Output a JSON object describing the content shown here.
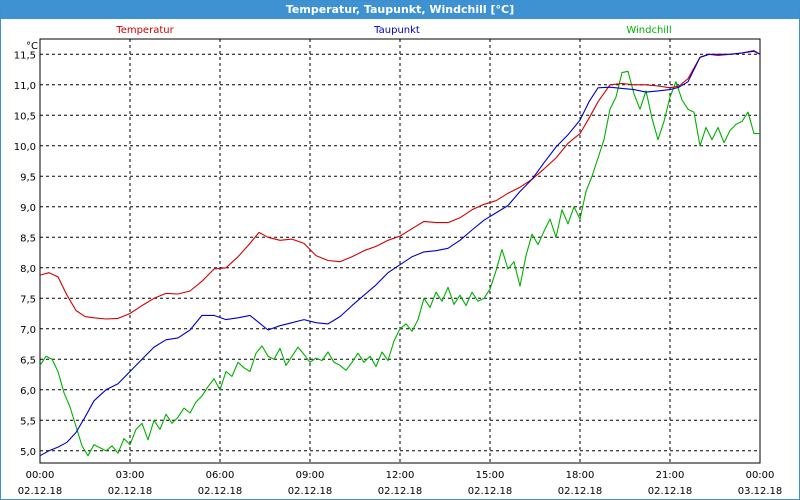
{
  "window": {
    "title": "Temperatur, Taupunkt, Windchill [°C]"
  },
  "colors": {
    "titlebar": "#3f92d2",
    "grid": "#000000"
  },
  "chart_data": {
    "type": "line",
    "title": "Temperatur, Taupunkt, Windchill [°C]",
    "ylabel": "°C",
    "ylim": [
      4.8,
      11.75
    ],
    "xlim": [
      0,
      24
    ],
    "grid": true,
    "legend_position": "top",
    "y_ticks": [
      {
        "value": 5.0,
        "label": "5,0"
      },
      {
        "value": 5.5,
        "label": "5,5"
      },
      {
        "value": 6.0,
        "label": "6,0"
      },
      {
        "value": 6.5,
        "label": "6,5"
      },
      {
        "value": 7.0,
        "label": "7,0"
      },
      {
        "value": 7.5,
        "label": "7,5"
      },
      {
        "value": 8.0,
        "label": "8,0"
      },
      {
        "value": 8.5,
        "label": "8,5"
      },
      {
        "value": 9.0,
        "label": "9,0"
      },
      {
        "value": 9.5,
        "label": "9,5"
      },
      {
        "value": 10.0,
        "label": "10,0"
      },
      {
        "value": 10.5,
        "label": "10,5"
      },
      {
        "value": 11.0,
        "label": "11,0"
      },
      {
        "value": 11.5,
        "label": "11,5"
      }
    ],
    "x_ticks": [
      {
        "value": 0,
        "time": "00:00",
        "date": "02.12.18"
      },
      {
        "value": 3,
        "time": "03:00",
        "date": "02.12.18"
      },
      {
        "value": 6,
        "time": "06:00",
        "date": "02.12.18"
      },
      {
        "value": 9,
        "time": "09:00",
        "date": "02.12.18"
      },
      {
        "value": 12,
        "time": "12:00",
        "date": "02.12.18"
      },
      {
        "value": 15,
        "time": "15:00",
        "date": "02.12.18"
      },
      {
        "value": 18,
        "time": "18:00",
        "date": "02.12.18"
      },
      {
        "value": 21,
        "time": "21:00",
        "date": "02.12.18"
      },
      {
        "value": 24,
        "time": "00:00",
        "date": "03.12.18"
      }
    ],
    "series": [
      {
        "name": "Temperatur",
        "color": "#d00000",
        "x": [
          0,
          0.3,
          0.6,
          0.9,
          1.2,
          1.5,
          1.8,
          2.2,
          2.6,
          3.0,
          3.4,
          3.8,
          4.2,
          4.6,
          5.0,
          5.4,
          5.8,
          6.2,
          6.6,
          7.0,
          7.3,
          7.6,
          8.0,
          8.4,
          8.8,
          9.2,
          9.6,
          10.0,
          10.4,
          10.8,
          11.2,
          11.6,
          12.0,
          12.4,
          12.8,
          13.2,
          13.6,
          14.0,
          14.4,
          14.8,
          15.2,
          15.6,
          16.0,
          16.4,
          16.8,
          17.2,
          17.6,
          18.0,
          18.3,
          18.6,
          19.0,
          19.4,
          19.8,
          20.2,
          20.6,
          21.0,
          21.3,
          21.6,
          22.0,
          22.3,
          22.6,
          23.0,
          23.4,
          23.8,
          24.0
        ],
        "y": [
          7.88,
          7.92,
          7.85,
          7.55,
          7.3,
          7.2,
          7.18,
          7.16,
          7.17,
          7.25,
          7.38,
          7.5,
          7.58,
          7.57,
          7.62,
          7.78,
          7.98,
          8.0,
          8.18,
          8.4,
          8.58,
          8.5,
          8.45,
          8.47,
          8.4,
          8.2,
          8.12,
          8.1,
          8.18,
          8.28,
          8.35,
          8.45,
          8.52,
          8.64,
          8.76,
          8.74,
          8.74,
          8.82,
          8.95,
          9.04,
          9.1,
          9.22,
          9.32,
          9.45,
          9.62,
          9.8,
          10.04,
          10.2,
          10.45,
          10.72,
          11.0,
          11.02,
          11.0,
          11.0,
          10.98,
          10.95,
          10.98,
          11.1,
          11.45,
          11.5,
          11.48,
          11.5,
          11.52,
          11.56,
          11.5
        ]
      },
      {
        "name": "Taupunkt",
        "color": "#0000c8",
        "x": [
          0,
          0.3,
          0.6,
          0.9,
          1.2,
          1.5,
          1.8,
          2.2,
          2.6,
          3.0,
          3.4,
          3.8,
          4.2,
          4.6,
          5.0,
          5.4,
          5.8,
          6.2,
          6.6,
          7.0,
          7.3,
          7.6,
          8.0,
          8.4,
          8.8,
          9.2,
          9.6,
          10.0,
          10.4,
          10.8,
          11.2,
          11.6,
          12.0,
          12.4,
          12.8,
          13.2,
          13.6,
          14.0,
          14.4,
          14.8,
          15.2,
          15.6,
          16.0,
          16.4,
          16.8,
          17.2,
          17.6,
          18.0,
          18.3,
          18.6,
          19.0,
          19.4,
          19.8,
          20.2,
          20.6,
          21.0,
          21.3,
          21.6,
          22.0,
          22.3,
          22.6,
          23.0,
          23.4,
          23.8,
          24.0
        ],
        "y": [
          4.92,
          5.0,
          5.06,
          5.14,
          5.3,
          5.55,
          5.82,
          6.0,
          6.1,
          6.3,
          6.5,
          6.7,
          6.82,
          6.85,
          6.98,
          7.22,
          7.22,
          7.15,
          7.18,
          7.22,
          7.1,
          6.98,
          7.05,
          7.1,
          7.15,
          7.1,
          7.08,
          7.2,
          7.38,
          7.55,
          7.72,
          7.92,
          8.05,
          8.18,
          8.26,
          8.28,
          8.32,
          8.45,
          8.62,
          8.78,
          8.9,
          9.02,
          9.25,
          9.45,
          9.72,
          9.98,
          10.18,
          10.42,
          10.72,
          10.95,
          10.96,
          10.94,
          10.92,
          10.88,
          10.9,
          10.92,
          10.96,
          11.05,
          11.45,
          11.5,
          11.5,
          11.5,
          11.52,
          11.55,
          11.5
        ]
      },
      {
        "name": "Windchill",
        "color": "#00b000",
        "x": [
          0,
          0.2,
          0.4,
          0.6,
          0.8,
          1.0,
          1.2,
          1.4,
          1.6,
          1.8,
          2.0,
          2.2,
          2.4,
          2.6,
          2.8,
          3.0,
          3.2,
          3.4,
          3.6,
          3.8,
          4.0,
          4.2,
          4.4,
          4.6,
          4.8,
          5.0,
          5.2,
          5.4,
          5.6,
          5.8,
          6.0,
          6.2,
          6.4,
          6.6,
          6.8,
          7.0,
          7.2,
          7.4,
          7.6,
          7.8,
          8.0,
          8.2,
          8.4,
          8.6,
          8.8,
          9.0,
          9.2,
          9.4,
          9.6,
          9.8,
          10.0,
          10.2,
          10.4,
          10.6,
          10.8,
          11.0,
          11.2,
          11.4,
          11.6,
          11.8,
          12.0,
          12.2,
          12.4,
          12.6,
          12.8,
          13.0,
          13.2,
          13.4,
          13.6,
          13.8,
          14.0,
          14.2,
          14.4,
          14.6,
          14.8,
          15.0,
          15.2,
          15.4,
          15.6,
          15.8,
          16.0,
          16.2,
          16.4,
          16.6,
          16.8,
          17.0,
          17.2,
          17.4,
          17.6,
          17.8,
          18.0,
          18.2,
          18.4,
          18.6,
          18.8,
          19.0,
          19.2,
          19.4,
          19.6,
          19.8,
          20.0,
          20.2,
          20.4,
          20.6,
          20.8,
          21.0,
          21.2,
          21.4,
          21.6,
          21.8,
          22.0,
          22.2,
          22.4,
          22.6,
          22.8,
          23.0,
          23.2,
          23.4,
          23.6,
          23.8,
          24.0
        ],
        "y": [
          6.4,
          6.55,
          6.5,
          6.3,
          5.95,
          5.72,
          5.4,
          5.08,
          4.92,
          5.1,
          5.05,
          5.0,
          5.08,
          4.96,
          5.2,
          5.1,
          5.35,
          5.45,
          5.18,
          5.5,
          5.35,
          5.6,
          5.45,
          5.55,
          5.7,
          5.62,
          5.8,
          5.9,
          6.05,
          6.18,
          6.0,
          6.3,
          6.22,
          6.45,
          6.36,
          6.3,
          6.6,
          6.72,
          6.55,
          6.5,
          6.68,
          6.4,
          6.55,
          6.7,
          6.58,
          6.45,
          6.52,
          6.48,
          6.62,
          6.45,
          6.4,
          6.32,
          6.45,
          6.6,
          6.45,
          6.55,
          6.38,
          6.62,
          6.48,
          6.8,
          7.0,
          7.08,
          6.96,
          7.15,
          7.5,
          7.35,
          7.6,
          7.45,
          7.68,
          7.4,
          7.55,
          7.38,
          7.6,
          7.45,
          7.5,
          7.65,
          7.95,
          8.3,
          7.98,
          8.1,
          7.7,
          8.2,
          8.55,
          8.38,
          8.6,
          8.8,
          8.5,
          8.95,
          8.72,
          9.0,
          8.8,
          9.25,
          9.5,
          9.8,
          10.1,
          10.6,
          10.8,
          11.2,
          11.22,
          10.85,
          10.6,
          10.9,
          10.45,
          10.1,
          10.4,
          10.8,
          11.05,
          10.75,
          10.6,
          10.55,
          10.0,
          10.3,
          10.1,
          10.3,
          10.05,
          10.25,
          10.35,
          10.4,
          10.55,
          10.2,
          10.2
        ]
      }
    ]
  }
}
